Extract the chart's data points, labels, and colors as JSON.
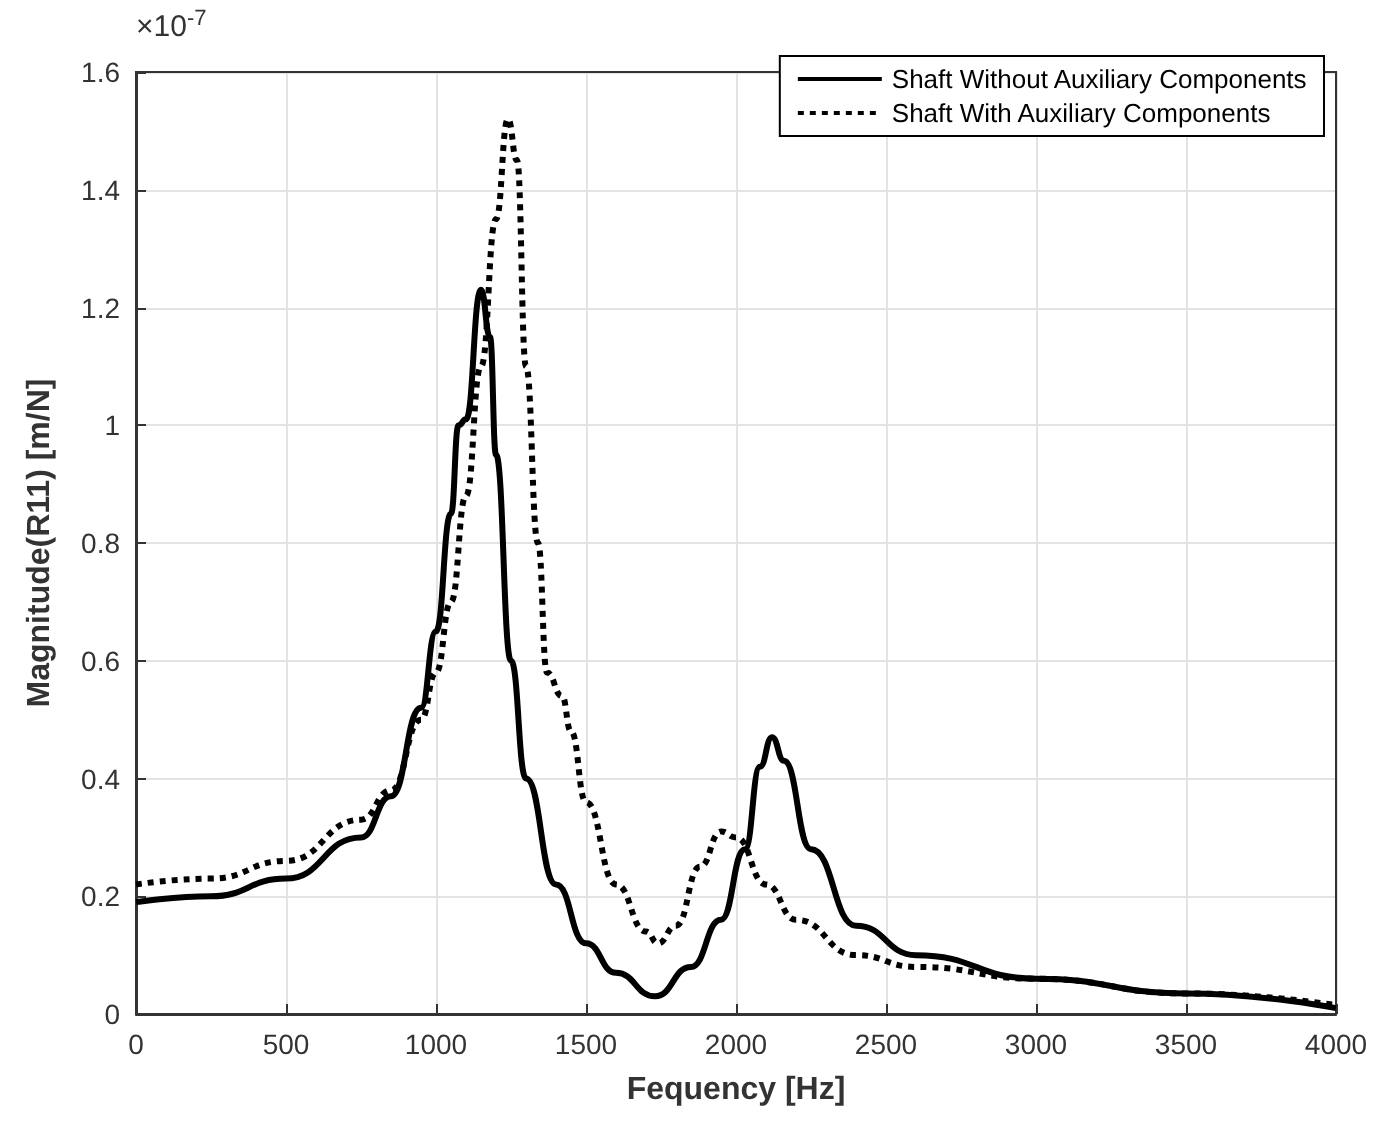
{
  "chart_data": {
    "type": "line",
    "xlabel": "Fequency [Hz]",
    "ylabel": "Magnitude(R11) [m/N]",
    "annotations": [
      "×10$^{-7}$"
    ],
    "xlim": [
      0,
      4000
    ],
    "xticks": [
      0,
      500,
      1000,
      1500,
      2000,
      2500,
      3000,
      3500,
      4000
    ],
    "ylim": [
      0,
      1.6
    ],
    "yticks": [
      0,
      0.2,
      0.4,
      0.6,
      0.8,
      1,
      1.2,
      1.4,
      1.6
    ],
    "grid": true,
    "legend": "top right",
    "marker": "none",
    "series": [
      {
        "name": "Shaft Without Auxiliary Components",
        "color": "#000000",
        "line_style": "solid",
        "x": [
          0,
          250,
          500,
          750,
          850,
          950,
          1000,
          1050,
          1075,
          1100,
          1150,
          1180,
          1200,
          1250,
          1300,
          1400,
          1500,
          1600,
          1730,
          1850,
          1950,
          2030,
          2080,
          2120,
          2160,
          2250,
          2400,
          2600,
          3000,
          3500,
          4000
        ],
        "values": [
          0.19,
          0.2,
          0.23,
          0.3,
          0.37,
          0.52,
          0.65,
          0.85,
          1.0,
          1.01,
          1.23,
          1.15,
          0.95,
          0.6,
          0.4,
          0.22,
          0.12,
          0.07,
          0.03,
          0.08,
          0.16,
          0.28,
          0.42,
          0.47,
          0.43,
          0.28,
          0.15,
          0.1,
          0.06,
          0.035,
          0.01
        ]
      },
      {
        "name": "Shaft With Auxiliary Components",
        "color": "#000000",
        "line_style": "dotted",
        "x": [
          0,
          250,
          500,
          750,
          850,
          950,
          1000,
          1050,
          1100,
          1150,
          1200,
          1240,
          1270,
          1300,
          1340,
          1370,
          1420,
          1450,
          1500,
          1600,
          1700,
          1740,
          1800,
          1880,
          1950,
          2000,
          2100,
          2200,
          2400,
          2600,
          3000,
          3500,
          4000
        ],
        "values": [
          0.22,
          0.23,
          0.26,
          0.33,
          0.38,
          0.5,
          0.58,
          0.7,
          0.88,
          1.1,
          1.35,
          1.52,
          1.45,
          1.1,
          0.8,
          0.58,
          0.54,
          0.48,
          0.36,
          0.22,
          0.14,
          0.12,
          0.15,
          0.25,
          0.31,
          0.3,
          0.22,
          0.16,
          0.1,
          0.08,
          0.06,
          0.035,
          0.015
        ]
      }
    ]
  }
}
